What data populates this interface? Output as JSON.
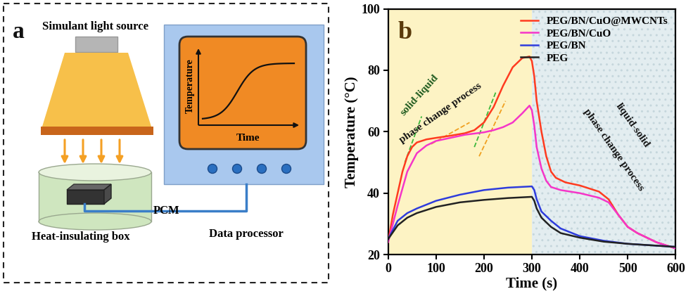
{
  "diagram": {
    "label": "a",
    "light_source": "Simulant light source",
    "pcm": "PCM",
    "box": "Heat-insulating box",
    "processor": "Data processor",
    "screen": {
      "y_label": "Temperature",
      "x_label": "Time"
    }
  },
  "chart_data": {
    "type": "line",
    "panel_label": "b",
    "x_label": "Time (s)",
    "y_label": "Temperature (°C)",
    "xlim": [
      0,
      600
    ],
    "ylim": [
      20,
      100
    ],
    "xticks": [
      0,
      100,
      200,
      300,
      400,
      500,
      600
    ],
    "yticks": [
      20,
      40,
      60,
      80,
      100
    ],
    "legend": "upper right",
    "series": [
      {
        "name": "PEG/BN/CuO@MWCNTs",
        "color": "#ff3b1f",
        "x": [
          0,
          10,
          20,
          30,
          40,
          50,
          60,
          80,
          100,
          130,
          160,
          180,
          200,
          220,
          240,
          260,
          280,
          295,
          300,
          305,
          310,
          320,
          330,
          340,
          350,
          370,
          400,
          420,
          440,
          460,
          480,
          500,
          520,
          540,
          560,
          580,
          600
        ],
        "values": [
          24,
          33,
          40,
          47,
          52,
          55,
          56.5,
          57.5,
          58,
          58.7,
          59.5,
          60.5,
          63,
          68,
          75,
          81,
          84,
          84.5,
          83,
          78,
          70,
          60,
          52,
          47,
          45,
          43.5,
          42.5,
          41.5,
          40.5,
          38,
          33,
          29,
          27,
          25.5,
          24,
          23,
          22
        ]
      },
      {
        "name": "PEG/BN/CuO",
        "color": "#f535c8",
        "x": [
          0,
          20,
          40,
          60,
          80,
          100,
          130,
          160,
          200,
          220,
          240,
          260,
          280,
          295,
          300,
          305,
          310,
          320,
          330,
          340,
          360,
          400,
          440,
          460,
          480,
          500,
          520,
          540,
          560,
          580,
          600
        ],
        "values": [
          24,
          36,
          47,
          53,
          55.5,
          57,
          58,
          59,
          59.8,
          60.5,
          61.5,
          63,
          66,
          68.5,
          67,
          62,
          55,
          48,
          44,
          42,
          41,
          40,
          38.5,
          37,
          33,
          29,
          27,
          25.5,
          24,
          23,
          22
        ]
      },
      {
        "name": "PEG/BN",
        "color": "#2e3cdc",
        "x": [
          0,
          20,
          40,
          60,
          100,
          150,
          200,
          250,
          300,
          305,
          310,
          320,
          340,
          360,
          400,
          450,
          500,
          550,
          600
        ],
        "values": [
          25,
          31,
          33.5,
          35,
          37.5,
          39.5,
          41,
          41.8,
          42.2,
          41,
          38,
          34,
          31,
          28.5,
          26,
          24.5,
          23.5,
          23,
          22.5
        ]
      },
      {
        "name": "PEG",
        "color": "#222222",
        "x": [
          0,
          20,
          40,
          60,
          100,
          150,
          200,
          250,
          300,
          305,
          310,
          320,
          340,
          360,
          400,
          450,
          500,
          550,
          600
        ],
        "values": [
          25,
          29.5,
          32,
          33.5,
          35.5,
          37,
          37.8,
          38.4,
          38.8,
          37.5,
          35,
          32,
          29,
          27,
          25.5,
          24.2,
          23.5,
          23,
          22.5
        ]
      }
    ],
    "annotations": [
      {
        "text": "solid-liquid",
        "x": 65,
        "y": 72,
        "color": "#1e5a1e"
      },
      {
        "text": "phase change process",
        "x": 110,
        "y": 66,
        "color": "#111111"
      },
      {
        "text": "liquid-solid",
        "x": 510,
        "y": 62,
        "color": "#111111"
      },
      {
        "text": "phase change process",
        "x": 470,
        "y": 54,
        "color": "#111111"
      }
    ],
    "tangent_lines": [
      {
        "x": [
          35,
          70
        ],
        "y": [
          50,
          65
        ],
        "color": "#3cb83c"
      },
      {
        "x": [
          90,
          170
        ],
        "y": [
          56,
          63
        ],
        "color": "#f0a020"
      },
      {
        "x": [
          180,
          225
        ],
        "y": [
          55,
          73
        ],
        "color": "#3cb83c"
      },
      {
        "x": [
          190,
          245
        ],
        "y": [
          52,
          70
        ],
        "color": "#f0a020"
      }
    ],
    "regions": [
      {
        "x": [
          0,
          300
        ],
        "color": "#fdf3c4"
      },
      {
        "x": [
          300,
          600
        ],
        "color": "#e3edf0"
      }
    ]
  }
}
